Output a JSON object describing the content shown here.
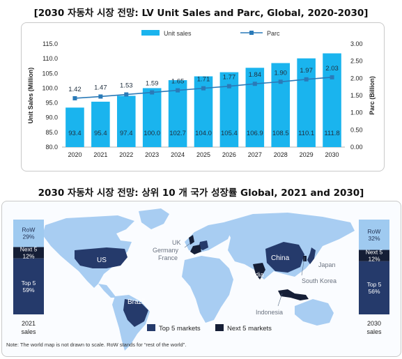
{
  "title_top": "[2030 자동차 시장 전망: LV Unit Sales and Parc, Global, 2020-2030]",
  "title_bottom": "2030 자동차 시장 전망: 상위 10 개 국가 성장률 Global, 2021 and 2030]",
  "colors": {
    "bar": "#1ab4ee",
    "line": "#2a7ab8",
    "top5": "#253a6b",
    "next5": "#151e36",
    "row": "#9fcaf0",
    "land": "#a8cdf2"
  },
  "chart_data": {
    "type": "bar",
    "categories": [
      "2020",
      "2021",
      "2022",
      "2023",
      "2024",
      "2025",
      "2026",
      "2027",
      "2028",
      "2029",
      "2030"
    ],
    "series": [
      {
        "name": "Unit sales",
        "axis": "left",
        "type": "bar",
        "values": [
          93.4,
          95.4,
          97.4,
          100.0,
          102.7,
          104.0,
          105.4,
          106.9,
          108.5,
          110.1,
          111.8
        ],
        "labels": [
          "93.4",
          "95.4",
          "97.4",
          "100.0",
          "102.7",
          "104.0",
          "105.4",
          "106.9",
          "108.5",
          "110.1",
          "111.8"
        ]
      },
      {
        "name": "Parc",
        "axis": "right",
        "type": "line",
        "values": [
          1.42,
          1.47,
          1.53,
          1.59,
          1.65,
          1.71,
          1.77,
          1.84,
          1.9,
          1.97,
          2.03
        ],
        "labels": [
          "1.42",
          "1.47",
          "1.53",
          "1.59",
          "1.65",
          "1.71",
          "1.77",
          "1.84",
          "1.90",
          "1.97",
          "2.03"
        ]
      }
    ],
    "ylabel": "Unit Sales (Million)",
    "y2label": "Parc (Billion)",
    "ylim": [
      80.0,
      115.0
    ],
    "y2lim": [
      0.0,
      3.0
    ],
    "yticks": [
      "80.0",
      "85.0",
      "90.0",
      "95.0",
      "100.0",
      "105.0",
      "110.0",
      "115.0"
    ],
    "y2ticks": [
      "0.00",
      "0.50",
      "1.00",
      "1.50",
      "2.00",
      "2.50",
      "3.00"
    ],
    "legend_position": "top"
  },
  "map": {
    "country_labels": {
      "us": "US",
      "uk": "UK",
      "germany": "Germany",
      "france": "France",
      "china": "China",
      "japan": "Japan",
      "india": "India",
      "south_korea": "South Korea",
      "brazil": "Brazil",
      "indonesia": "Indonesia"
    },
    "left_bar": {
      "year": "2021",
      "caption": "sales",
      "segments": [
        {
          "name": "RoW",
          "value": "29%",
          "fraction": 0.29
        },
        {
          "name": "Next 5",
          "value": "12%",
          "fraction": 0.12
        },
        {
          "name": "Top 5",
          "value": "59%",
          "fraction": 0.59
        }
      ]
    },
    "right_bar": {
      "year": "2030",
      "caption": "sales",
      "segments": [
        {
          "name": "RoW",
          "value": "32%",
          "fraction": 0.32
        },
        {
          "name": "Next 5",
          "value": "12%",
          "fraction": 0.12
        },
        {
          "name": "Top 5",
          "value": "56%",
          "fraction": 0.56
        }
      ]
    },
    "legend": {
      "top5": "Top 5 markets",
      "next5": "Next 5 markets"
    },
    "note": "Note: The world map is not drawn to scale. RoW stands for “rest of the world”."
  }
}
